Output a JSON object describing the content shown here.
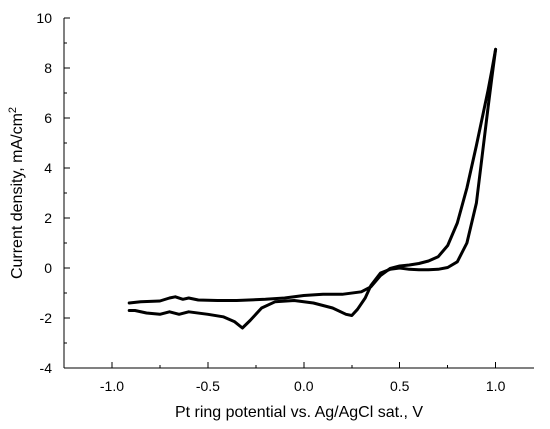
{
  "chart_data": {
    "type": "line",
    "title": "",
    "xlabel": "Pt ring potential vs. Ag/AgCl sat., V",
    "ylabel": "Current density, mA/cm",
    "ylabel_superscript": "2",
    "xlim": [
      -1.25,
      1.2
    ],
    "ylim": [
      -4,
      10
    ],
    "x_ticks": [
      -1.0,
      -0.5,
      0.0,
      0.5,
      1.0
    ],
    "x_tick_labels": [
      "-1.0",
      "-0.5",
      "0.0",
      "0.5",
      "1.0"
    ],
    "y_ticks": [
      -4,
      -2,
      0,
      2,
      4,
      6,
      8,
      10
    ],
    "y_tick_labels": [
      "-4",
      "-2",
      "0",
      "2",
      "4",
      "6",
      "8",
      "10"
    ],
    "grid": false,
    "legend": "none",
    "line_color": "#000000",
    "series": [
      {
        "x": [
          -0.91,
          -0.85,
          -0.75,
          -0.7,
          -0.67,
          -0.63,
          -0.6,
          -0.55,
          -0.45,
          -0.35,
          -0.2,
          -0.1,
          0.0,
          0.1,
          0.2,
          0.3,
          0.35,
          0.4,
          0.45,
          0.5,
          0.55,
          0.6,
          0.65,
          0.7,
          0.75,
          0.8,
          0.85,
          0.9,
          0.93,
          0.96,
          0.98,
          1.0
        ],
        "y": [
          -1.4,
          -1.35,
          -1.32,
          -1.2,
          -1.15,
          -1.25,
          -1.2,
          -1.28,
          -1.3,
          -1.3,
          -1.25,
          -1.2,
          -1.1,
          -1.05,
          -1.05,
          -0.95,
          -0.75,
          -0.3,
          -0.02,
          0.08,
          0.12,
          0.18,
          0.28,
          0.45,
          0.9,
          1.8,
          3.2,
          4.9,
          6.0,
          7.1,
          7.9,
          8.75
        ]
      },
      {
        "x": [
          1.0,
          0.98,
          0.96,
          0.93,
          0.9,
          0.85,
          0.8,
          0.75,
          0.7,
          0.65,
          0.6,
          0.55,
          0.5,
          0.45,
          0.4,
          0.35,
          0.32,
          0.28,
          0.25,
          0.22,
          0.15,
          0.05,
          -0.05,
          -0.15,
          -0.22,
          -0.28,
          -0.32,
          -0.36,
          -0.42,
          -0.5,
          -0.6,
          -0.65,
          -0.7,
          -0.75,
          -0.82,
          -0.88,
          -0.91
        ],
        "y": [
          8.75,
          7.6,
          6.4,
          4.5,
          2.6,
          1.0,
          0.25,
          0.02,
          -0.05,
          -0.07,
          -0.07,
          -0.05,
          0.0,
          -0.05,
          -0.2,
          -0.7,
          -1.2,
          -1.65,
          -1.9,
          -1.85,
          -1.6,
          -1.4,
          -1.3,
          -1.35,
          -1.6,
          -2.1,
          -2.4,
          -2.15,
          -1.95,
          -1.85,
          -1.75,
          -1.85,
          -1.75,
          -1.85,
          -1.8,
          -1.7,
          -1.7
        ]
      }
    ]
  }
}
